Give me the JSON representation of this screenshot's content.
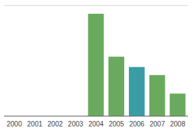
{
  "chart_data": {
    "type": "bar",
    "categories": [
      "2000",
      "2001",
      "2002",
      "2003",
      "2004",
      "2005",
      "2006",
      "2007",
      "2008"
    ],
    "values": [
      0,
      0,
      0,
      0,
      100,
      58,
      48,
      40,
      22
    ],
    "colors": [
      "#6aaa5e",
      "#6aaa5e",
      "#6aaa5e",
      "#6aaa5e",
      "#6aaa5e",
      "#6aaa5e",
      "#3a9da5",
      "#6aaa5e",
      "#6aaa5e"
    ],
    "ylim": [
      0,
      108
    ],
    "yticks": [
      0,
      18,
      36,
      54,
      72,
      90,
      108
    ],
    "grid": true,
    "tick_labels": "x"
  }
}
